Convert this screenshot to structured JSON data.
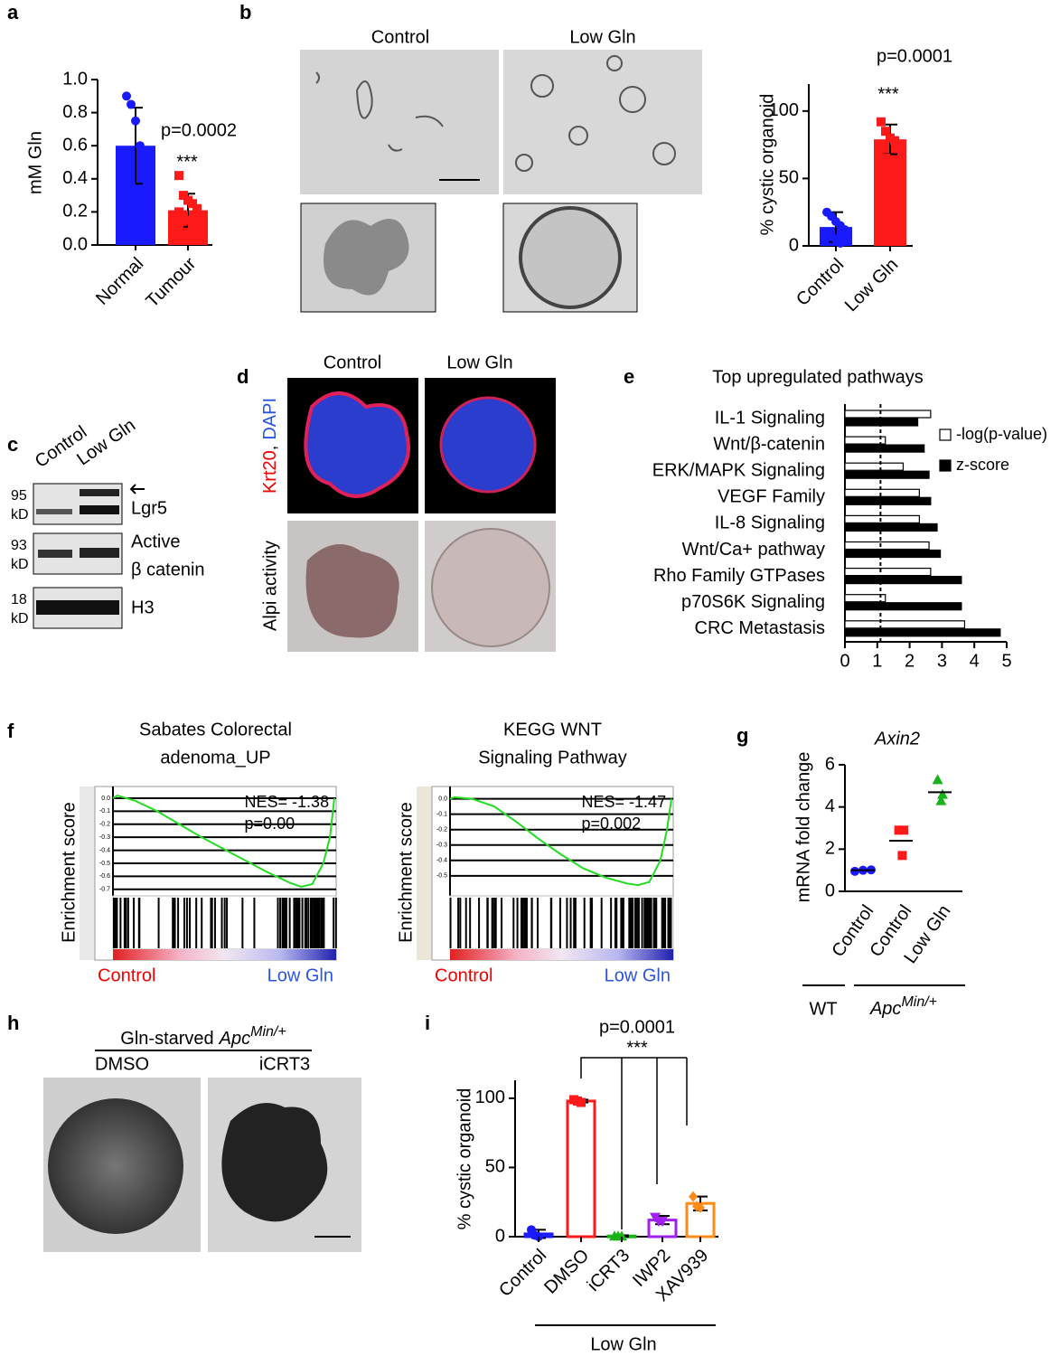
{
  "panel_labels": [
    "a",
    "b",
    "c",
    "d",
    "e",
    "f",
    "g",
    "h",
    "i"
  ],
  "panel_b_images": {
    "labels": [
      "Control",
      "Low Gln"
    ]
  },
  "panel_c": {
    "lanes": [
      "Control",
      "Low Gln"
    ],
    "rows": [
      {
        "size": "95",
        "unit": "kD",
        "label": [
          "Lgr5"
        ]
      },
      {
        "size": "93",
        "unit": "kD",
        "label": [
          "Active",
          "β catenin"
        ]
      },
      {
        "size": "18",
        "unit": "kD",
        "label": [
          "H3"
        ]
      }
    ]
  },
  "panel_d": {
    "columns": [
      "Control",
      "Low Gln"
    ],
    "row_labels": [
      [
        "Krt20",
        ",",
        "DAPI"
      ],
      [
        "Alpi activity"
      ]
    ]
  },
  "panel_h": {
    "title": [
      "Gln-starved",
      "Apc",
      "Min/+"
    ],
    "columns": [
      "DMSO",
      "iCRT3"
    ]
  },
  "chart_data": [
    {
      "type": "bar",
      "ylabel": "mM Gln",
      "categories": [
        "Normal",
        "Tumour"
      ],
      "values": [
        0.6,
        0.21
      ],
      "errors": [
        0.23,
        0.1
      ],
      "colors": [
        "#1a1aff",
        "#ff1a1a"
      ],
      "filled": true,
      "markers": [
        "circle",
        "square"
      ],
      "points": [
        [
          0.9,
          0.85,
          0.75,
          0.6,
          0.45,
          0.38,
          0.37
        ],
        [
          0.42,
          0.3,
          0.27,
          0.25,
          0.22,
          0.2,
          0.18,
          0.15,
          0.12,
          0.1,
          0.1
        ]
      ],
      "ylim": [
        0,
        1.0
      ],
      "yticks": [
        {
          "value": 0,
          "label": "0.0"
        },
        0.2,
        0.4,
        0.6,
        0.8,
        {
          "value": 1,
          "label": "1.0"
        }
      ],
      "annotations": [
        "p=0.0002",
        "***"
      ]
    },
    {
      "type": "bar",
      "ylabel": "% cystic organoid",
      "categories": [
        "Control",
        "Low Gln"
      ],
      "values": [
        14,
        79
      ],
      "errors": [
        11,
        11
      ],
      "colors": [
        "#1a1aff",
        "#ff1a1a"
      ],
      "filled": true,
      "markers": [
        "circle",
        "square"
      ],
      "points": [
        [
          25,
          22,
          18,
          15,
          12,
          10,
          8,
          5,
          2
        ],
        [
          92,
          85,
          80,
          78,
          75,
          72,
          65
        ]
      ],
      "ylim": [
        0,
        120
      ],
      "yticks": [
        0,
        50,
        100
      ],
      "annotations": [
        "p=0.0001",
        "***"
      ]
    },
    {
      "type": "hbar",
      "title": "Top upregulated pathways",
      "categories": [
        "IL-1 Signaling",
        "Wnt/β-catenin",
        "ERK/MAPK Signaling",
        "VEGF Family",
        "IL-8 Signaling",
        "Wnt/Ca+ pathway",
        "Rho Family GTPases",
        "p70S6K Signaling",
        "CRC Metastasis"
      ],
      "series": [
        {
          "name": "-log(p-value)",
          "color": "#ffffff",
          "values": [
            2.65,
            1.25,
            1.8,
            2.3,
            2.3,
            2.6,
            2.65,
            1.25,
            3.7
          ]
        },
        {
          "name": "z-score",
          "color": "#000000",
          "values": [
            2.25,
            2.45,
            2.6,
            2.65,
            2.85,
            2.95,
            3.6,
            3.6,
            4.8
          ]
        }
      ],
      "reference_line": 1.1,
      "xlim": [
        0,
        5
      ],
      "xticks": [
        0,
        1,
        2,
        3,
        4,
        5
      ],
      "legend": "upper right"
    },
    {
      "type": "line",
      "title": [
        "Sabates Colorectal",
        "adenoma_UP"
      ],
      "ylabel": "Enrichment score",
      "color": "#22dd22",
      "x": [
        0,
        0.02,
        0.1,
        0.2,
        0.3,
        0.4,
        0.5,
        0.6,
        0.7,
        0.8,
        0.85,
        0.9,
        0.95,
        0.98,
        1
      ],
      "values": [
        0,
        0.02,
        -0.02,
        -0.1,
        -0.2,
        -0.3,
        -0.39,
        -0.48,
        -0.57,
        -0.65,
        -0.68,
        -0.66,
        -0.5,
        -0.3,
        0
      ],
      "xlim": [
        0,
        1
      ],
      "ylim": [
        -0.75,
        0.09
      ],
      "yticks": [
        {
          "value": 0,
          "label": "0.0"
        },
        -0.1,
        -0.2,
        -0.3,
        -0.4,
        -0.5,
        -0.6,
        -0.7
      ],
      "annotations": [
        "NES= -1.38",
        "p=0.00"
      ],
      "phenotypes": [
        "Control",
        "Low Gln"
      ]
    },
    {
      "type": "line",
      "title": [
        "KEGG WNT",
        "Signaling Pathway"
      ],
      "ylabel": "Enrichment score",
      "color": "#22dd22",
      "x": [
        0,
        0.02,
        0.1,
        0.2,
        0.3,
        0.4,
        0.5,
        0.6,
        0.7,
        0.8,
        0.85,
        0.9,
        0.95,
        0.98,
        1
      ],
      "values": [
        0,
        0.01,
        0,
        -0.05,
        -0.15,
        -0.26,
        -0.36,
        -0.45,
        -0.51,
        -0.55,
        -0.56,
        -0.54,
        -0.4,
        -0.2,
        0
      ],
      "xlim": [
        0,
        1
      ],
      "ylim": [
        -0.63,
        0.08
      ],
      "yticks": [
        {
          "value": 0,
          "label": "0.0"
        },
        -0.1,
        -0.2,
        -0.3,
        -0.4,
        -0.5
      ],
      "annotations": [
        "NES= -1.47",
        "p=0.002"
      ],
      "phenotypes": [
        "Control",
        "Low Gln"
      ]
    },
    {
      "type": "scatter",
      "title": "Axin2",
      "ylabel": "mRNA fold change",
      "categories": [
        "Control",
        "Control",
        "Low Gln"
      ],
      "colors": [
        "#1a1aff",
        "#ff1a1a",
        "#19b319"
      ],
      "markers": [
        "circle",
        "square",
        "triangle"
      ],
      "points": [
        [
          0.95,
          1.0,
          1.02
        ],
        [
          2.9,
          2.9,
          1.7
        ],
        [
          5.3,
          4.6,
          4.3
        ]
      ],
      "means": [
        1.0,
        2.4,
        4.7
      ],
      "ylim": [
        0,
        6
      ],
      "yticks": [
        0,
        2,
        4,
        6
      ],
      "group_labels": [
        [
          "WT"
        ],
        [
          "Apc",
          "Min/+"
        ]
      ]
    },
    {
      "type": "bar",
      "ylabel": "% cystic organoid",
      "categories": [
        "Control",
        "DMSO",
        "iCRT3",
        "IWP2",
        "XAV939"
      ],
      "values": [
        2,
        98,
        0.5,
        12,
        24
      ],
      "errors": [
        3,
        1,
        0.5,
        3,
        5
      ],
      "colors": [
        "#1a1aff",
        "#ff1a1a",
        "#19b319",
        "#a020f0",
        "#ff8c1a"
      ],
      "filled": false,
      "markers": [
        "circle",
        "square",
        "triangle",
        "triangle-down",
        "diamond"
      ],
      "points": [
        [
          5,
          1,
          0
        ],
        [
          99,
          98,
          97
        ],
        [
          0.5,
          0.5,
          0.5
        ],
        [
          14,
          11,
          11
        ],
        [
          29,
          22,
          21
        ]
      ],
      "ylim": [
        0,
        113
      ],
      "yticks": [
        0,
        50,
        100
      ],
      "annotations": [
        "p=0.0001",
        "***"
      ],
      "group_label": "Low Gln"
    }
  ]
}
